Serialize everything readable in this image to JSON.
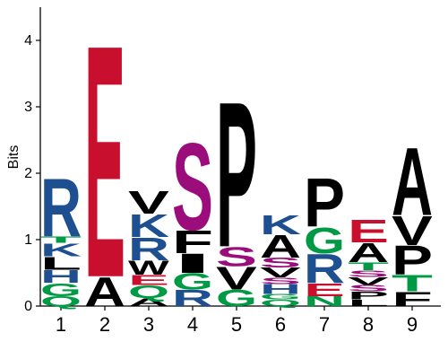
{
  "chart_data": {
    "type": "sequence-logo",
    "ylabel": "Bits",
    "ylim": [
      0,
      4.5
    ],
    "yticks": [
      "0",
      "1",
      "2",
      "3",
      "4"
    ],
    "positions": [
      "1",
      "2",
      "3",
      "4",
      "5",
      "6",
      "7",
      "8",
      "9"
    ],
    "colors": {
      "R": "#1d4f91",
      "K": "#1d4f91",
      "H": "#1d4f91",
      "E": "#c8102e",
      "D": "#c8102e",
      "S": "#9b0d7a",
      "T": "#009a44",
      "G": "#009a44",
      "Q": "#009a44",
      "N": "#009a44",
      "P": "#000000",
      "A": "#000000",
      "V": "#000000",
      "L": "#000000",
      "F": "#000000",
      "W": "#000000",
      "I": "#000000",
      "Y": "#000000"
    },
    "stacks": [
      [
        {
          "letter": "Q",
          "height": 0.15
        },
        {
          "letter": "G",
          "height": 0.2
        },
        {
          "letter": "H",
          "height": 0.2
        },
        {
          "letter": "L",
          "height": 0.2
        },
        {
          "letter": "K",
          "height": 0.2
        },
        {
          "letter": "T",
          "height": 0.1
        },
        {
          "letter": "R",
          "height": 0.9
        }
      ],
      [
        {
          "letter": "A",
          "height": 0.45
        },
        {
          "letter": "E",
          "height": 3.6
        }
      ],
      [
        {
          "letter": "A",
          "height": 0.12
        },
        {
          "letter": "Q",
          "height": 0.2
        },
        {
          "letter": "E",
          "height": 0.15
        },
        {
          "letter": "W",
          "height": 0.22
        },
        {
          "letter": "R",
          "height": 0.35
        },
        {
          "letter": "K",
          "height": 0.35
        },
        {
          "letter": "V",
          "height": 0.35
        }
      ],
      [
        {
          "letter": "R",
          "height": 0.25
        },
        {
          "letter": "G",
          "height": 0.25
        },
        {
          "letter": "I",
          "height": 0.3
        },
        {
          "letter": "F",
          "height": 0.35
        },
        {
          "letter": "S",
          "height": 1.35
        }
      ],
      [
        {
          "letter": "G",
          "height": 0.25
        },
        {
          "letter": "V",
          "height": 0.35
        },
        {
          "letter": "S",
          "height": 0.3
        },
        {
          "letter": "P",
          "height": 2.25
        }
      ],
      [
        {
          "letter": "Q",
          "height": 0.1
        },
        {
          "letter": "G",
          "height": 0.08
        },
        {
          "letter": "H",
          "height": 0.15
        },
        {
          "letter": "S",
          "height": 0.1
        },
        {
          "letter": "V",
          "height": 0.15
        },
        {
          "letter": "S",
          "height": 0.15
        },
        {
          "letter": "A",
          "height": 0.35
        },
        {
          "letter": "K",
          "height": 0.3
        }
      ],
      [
        {
          "letter": "N",
          "height": 0.15
        },
        {
          "letter": "E",
          "height": 0.2
        },
        {
          "letter": "R",
          "height": 0.45
        },
        {
          "letter": "G",
          "height": 0.4
        },
        {
          "letter": "P",
          "height": 0.75
        }
      ],
      [
        {
          "letter": "L",
          "height": 0.1
        },
        {
          "letter": "P",
          "height": 0.12
        },
        {
          "letter": "S",
          "height": 0.1
        },
        {
          "letter": "V",
          "height": 0.12
        },
        {
          "letter": "S",
          "height": 0.1
        },
        {
          "letter": "T",
          "height": 0.12
        },
        {
          "letter": "A",
          "height": 0.3
        },
        {
          "letter": "E",
          "height": 0.35
        }
      ],
      [
        {
          "letter": "F",
          "height": 0.22
        },
        {
          "letter": "T",
          "height": 0.25
        },
        {
          "letter": "P",
          "height": 0.45
        },
        {
          "letter": "V",
          "height": 0.45
        },
        {
          "letter": "A",
          "height": 1.05
        }
      ]
    ]
  }
}
